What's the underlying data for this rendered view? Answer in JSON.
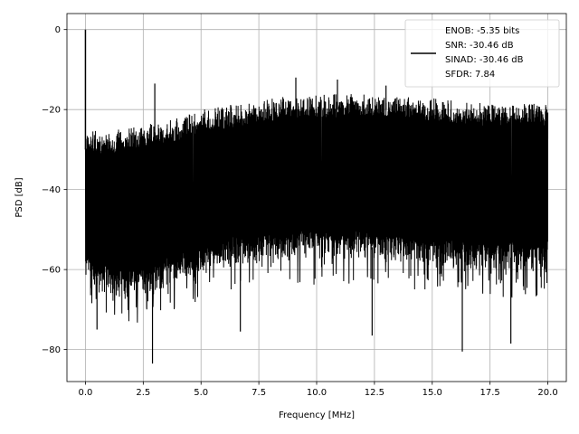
{
  "chart_data": {
    "type": "line",
    "title": "",
    "xlabel": "Frequency [MHz]",
    "ylabel": "PSD [dB]",
    "xlim": [
      -0.8,
      20.8
    ],
    "ylim": [
      -88,
      4
    ],
    "xticks": [
      0.0,
      2.5,
      5.0,
      7.5,
      10.0,
      12.5,
      15.0,
      17.5,
      20.0
    ],
    "xtick_labels": [
      "0.0",
      "2.5",
      "5.0",
      "7.5",
      "10.0",
      "12.5",
      "15.0",
      "17.5",
      "20.0"
    ],
    "yticks": [
      0,
      -20,
      -40,
      -60,
      -80
    ],
    "ytick_labels": [
      "0",
      "−20",
      "−40",
      "−60",
      "−80"
    ],
    "grid": true,
    "legend_position": "top-right",
    "legend_lines": [
      "ENOB: -5.35 bits",
      "SNR: -30.46 dB",
      "SINAD: -30.46 dB",
      "SFDR: 7.84"
    ],
    "line_color": "#000000",
    "series": [
      {
        "fundamental": {
          "x": 0.0,
          "y": 0.0
        },
        "envelope_x": [
          0.0,
          0.5,
          1.0,
          2.0,
          3.0,
          4.0,
          5.0,
          6.0,
          7.0,
          8.0,
          9.0,
          10.0,
          11.0,
          12.0,
          13.0,
          14.0,
          15.0,
          16.0,
          17.0,
          18.0,
          19.0,
          20.0
        ],
        "envelope_upper": [
          -25,
          -25,
          -25,
          -24,
          -23,
          -22,
          -20,
          -19,
          -18,
          -17,
          -16,
          -16,
          -16,
          -16,
          -16,
          -16.5,
          -17,
          -17.5,
          -18,
          -18,
          -18,
          -18
        ],
        "envelope_lower": [
          -64,
          -66,
          -67,
          -68,
          -66,
          -64,
          -62,
          -60,
          -59,
          -58,
          -58,
          -58,
          -58,
          -58,
          -59,
          -59,
          -60,
          -60,
          -61,
          -61,
          -61,
          -61
        ],
        "notable_peaks": [
          {
            "x": 3.0,
            "y": -13.5
          },
          {
            "x": 9.1,
            "y": -12.0
          },
          {
            "x": 10.9,
            "y": -12.5
          },
          {
            "x": 13.0,
            "y": -14.0
          }
        ],
        "notable_dips": [
          {
            "x": 2.9,
            "y": -83.5
          },
          {
            "x": 16.3,
            "y": -80.5
          },
          {
            "x": 18.4,
            "y": -78.5
          },
          {
            "x": 12.4,
            "y": -76.5
          },
          {
            "x": 6.7,
            "y": -75.5
          },
          {
            "x": 0.5,
            "y": -75.0
          }
        ]
      }
    ]
  }
}
